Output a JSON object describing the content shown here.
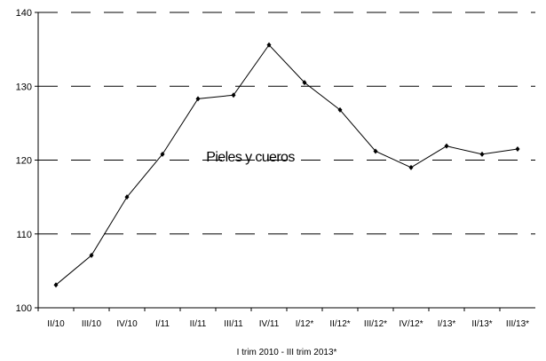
{
  "chart_data": {
    "type": "line",
    "title": "",
    "xlabel": "I trim 2010 - III trim 2013*",
    "ylabel": "",
    "ylim": [
      100,
      140
    ],
    "yticks": [
      100,
      110,
      120,
      130,
      140
    ],
    "grid": "horizontal-dashed",
    "categories": [
      "II/10",
      "III/10",
      "IV/10",
      "I/11",
      "II/11",
      "III/11",
      "IV/11",
      "I/12*",
      "II/12*",
      "III/12*",
      "IV/12*",
      "I/13*",
      "II/13*",
      "III/13*"
    ],
    "series": [
      {
        "name": "Pieles y cueros",
        "color": "#000000",
        "values": [
          103.1,
          107.1,
          115.0,
          120.8,
          128.3,
          128.8,
          135.6,
          130.5,
          126.8,
          121.2,
          119.0,
          121.9,
          120.8,
          121.5
        ]
      }
    ]
  }
}
